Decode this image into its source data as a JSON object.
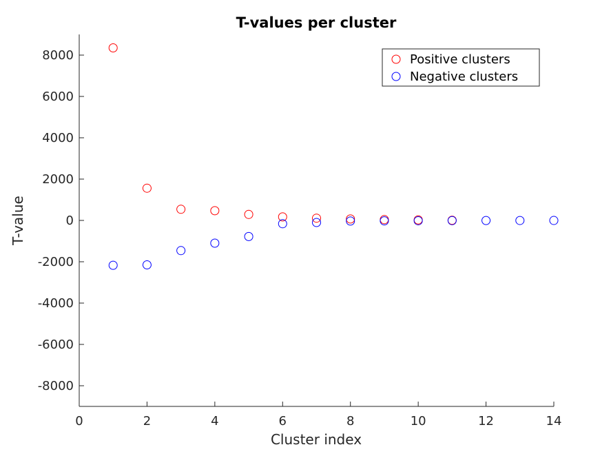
{
  "chart_data": {
    "type": "scatter",
    "title": "T-values per cluster",
    "xlabel": "Cluster index",
    "ylabel": "T-value",
    "xlim": [
      0,
      14
    ],
    "ylim": [
      -9000,
      9000
    ],
    "xticks": [
      0,
      2,
      4,
      6,
      8,
      10,
      12,
      14
    ],
    "yticks": [
      -8000,
      -6000,
      -4000,
      -2000,
      0,
      2000,
      4000,
      6000,
      8000
    ],
    "grid": false,
    "legend_position": "top-right",
    "series": [
      {
        "name": "Positive clusters",
        "color": "#ff0000",
        "marker": "circle",
        "x": [
          1,
          2,
          3,
          4,
          5,
          6,
          7,
          8,
          9,
          10,
          11
        ],
        "y": [
          8350,
          1560,
          540,
          470,
          290,
          170,
          110,
          70,
          40,
          25,
          10
        ]
      },
      {
        "name": "Negative clusters",
        "color": "#0000ff",
        "marker": "circle",
        "x": [
          1,
          2,
          3,
          4,
          5,
          6,
          7,
          8,
          9,
          10,
          11,
          12,
          13,
          14
        ],
        "y": [
          -2170,
          -2150,
          -1460,
          -1100,
          -780,
          -160,
          -100,
          -30,
          -20,
          -15,
          -10,
          -5,
          -3,
          -2
        ]
      }
    ]
  }
}
